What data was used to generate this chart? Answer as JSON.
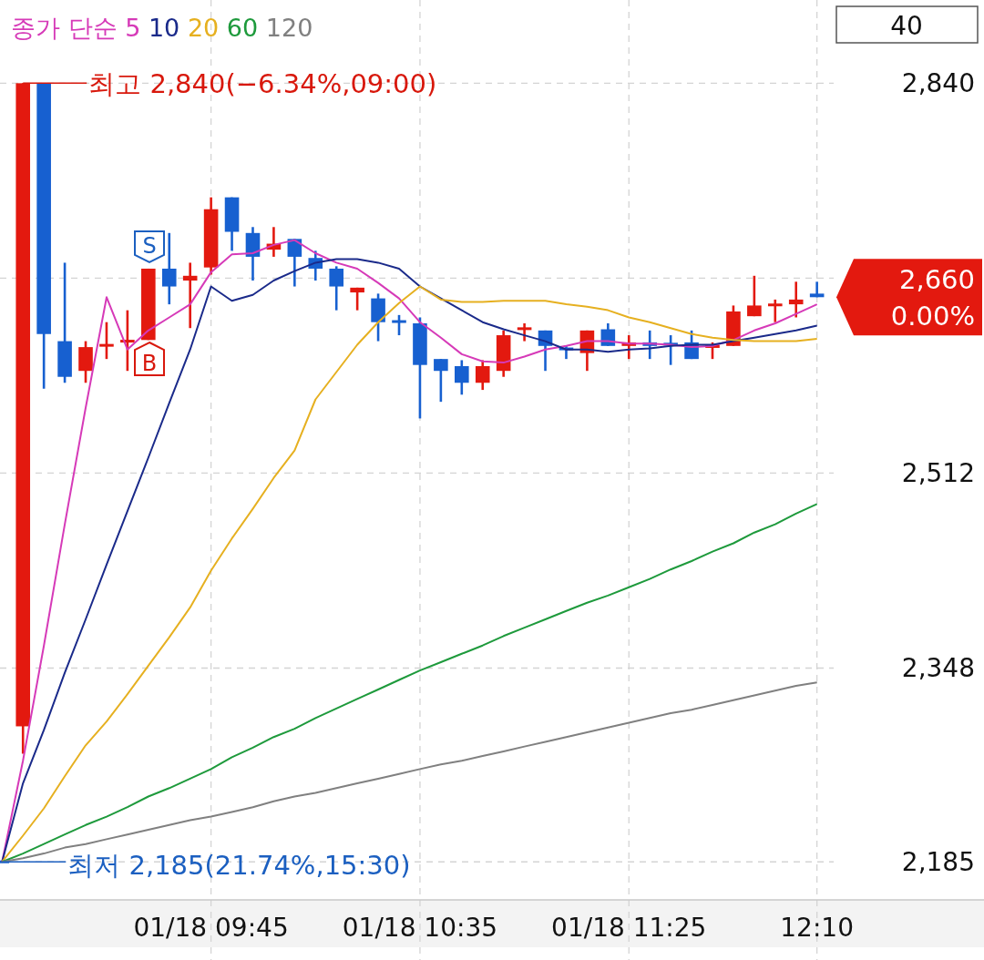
{
  "chart_data": {
    "type": "candlestick",
    "categories": [
      null,
      null,
      null,
      null,
      null,
      null,
      null,
      null,
      null,
      null,
      "01/18 09:45",
      null,
      null,
      null,
      null,
      null,
      null,
      null,
      null,
      null,
      "01/18 10:35",
      null,
      null,
      null,
      null,
      null,
      null,
      null,
      null,
      null,
      "01/18 11:25",
      null,
      null,
      null,
      null,
      null,
      null,
      null,
      null,
      "12:10"
    ],
    "ohlc": [
      [
        2185,
        2185,
        2185,
        2185
      ],
      [
        2299,
        2840,
        2276,
        2840
      ],
      [
        2840,
        2840,
        2583,
        2629
      ],
      [
        2623,
        2689,
        2588,
        2593
      ],
      [
        2598,
        2623,
        2588,
        2618
      ],
      [
        2619,
        2639,
        2608,
        2620
      ],
      [
        2623,
        2649,
        2598,
        2623
      ],
      [
        2624,
        2684,
        2624,
        2684
      ],
      [
        2684,
        2714,
        2654,
        2669
      ],
      [
        2674,
        2689,
        2634,
        2678
      ],
      [
        2685,
        2744,
        2679,
        2734
      ],
      [
        2744,
        2744,
        2699,
        2715
      ],
      [
        2714,
        2719,
        2674,
        2694
      ],
      [
        2700,
        2719,
        2694,
        2705
      ],
      [
        2709,
        2709,
        2669,
        2694
      ],
      [
        2693,
        2699,
        2674,
        2684
      ],
      [
        2684,
        2686,
        2649,
        2669
      ],
      [
        2664,
        2668,
        2649,
        2668
      ],
      [
        2659,
        2663,
        2623,
        2639
      ],
      [
        2640,
        2645,
        2628,
        2639
      ],
      [
        2638,
        2643,
        2558,
        2603
      ],
      [
        2608,
        2608,
        2572,
        2598
      ],
      [
        2602,
        2607,
        2578,
        2588
      ],
      [
        2588,
        2607,
        2582,
        2602
      ],
      [
        2598,
        2632,
        2593,
        2628
      ],
      [
        2633,
        2638,
        2623,
        2634
      ],
      [
        2632,
        2632,
        2598,
        2619
      ],
      [
        2617,
        2619,
        2608,
        2616
      ],
      [
        2613,
        2632,
        2598,
        2632
      ],
      [
        2633,
        2638,
        2619,
        2619
      ],
      [
        2619,
        2628,
        2608,
        2622
      ],
      [
        2622,
        2632,
        2608,
        2619
      ],
      [
        2621,
        2628,
        2603,
        2620
      ],
      [
        2622,
        2632,
        2608,
        2608
      ],
      [
        2618,
        2622,
        2608,
        2619
      ],
      [
        2619,
        2653,
        2619,
        2648
      ],
      [
        2644,
        2678,
        2644,
        2653
      ],
      [
        2653,
        2658,
        2639,
        2654
      ],
      [
        2654,
        2673,
        2643,
        2658
      ],
      [
        2663,
        2673,
        2660,
        2660
      ]
    ],
    "colors": [
      "#1760d0",
      "#e3190f",
      "#1760d0",
      "#1760d0",
      "#e3190f",
      "#e3190f",
      "#e3190f",
      "#e3190f",
      "#1760d0",
      "#e3190f",
      "#e3190f",
      "#1760d0",
      "#1760d0",
      "#e3190f",
      "#1760d0",
      "#1760d0",
      "#1760d0",
      "#e3190f",
      "#1760d0",
      "#1760d0",
      "#1760d0",
      "#1760d0",
      "#1760d0",
      "#e3190f",
      "#e3190f",
      "#e3190f",
      "#1760d0",
      "#1760d0",
      "#e3190f",
      "#1760d0",
      "#e3190f",
      "#1760d0",
      "#1760d0",
      "#1760d0",
      "#e3190f",
      "#e3190f",
      "#e3190f",
      "#e3190f",
      "#e3190f",
      "#1760d0"
    ],
    "legend_title": "종가 단순",
    "legend": "top left",
    "series": [
      {
        "name": "5",
        "type": "line",
        "color": "#d63ab8",
        "values": [
          2185,
          2270,
          2367,
          2469,
          2567,
          2660,
          2616,
          2632,
          2643,
          2654,
          2681,
          2696,
          2697,
          2704,
          2708,
          2697,
          2689,
          2684,
          2672,
          2659,
          2639,
          2626,
          2612,
          2606,
          2605,
          2610,
          2616,
          2619,
          2623,
          2623,
          2621,
          2621,
          2620,
          2618,
          2619,
          2624,
          2632,
          2638,
          2646,
          2654
        ]
      },
      {
        "name": "10",
        "type": "line",
        "color": "#1a2a8a",
        "values": [
          2185,
          2251,
          2296,
          2344,
          2389,
          2435,
          2480,
          2525,
          2571,
          2616,
          2669,
          2657,
          2662,
          2674,
          2682,
          2689,
          2692,
          2692,
          2689,
          2684,
          2669,
          2659,
          2649,
          2639,
          2633,
          2628,
          2623,
          2616,
          2616,
          2614,
          2616,
          2617,
          2619,
          2620,
          2620,
          2623,
          2626,
          2629,
          2632,
          2636
        ]
      },
      {
        "name": "20",
        "type": "line",
        "color": "#e6b020",
        "values": [
          2185,
          2207,
          2230,
          2257,
          2283,
          2303,
          2326,
          2350,
          2374,
          2399,
          2430,
          2457,
          2482,
          2508,
          2531,
          2574,
          2597,
          2620,
          2639,
          2655,
          2669,
          2658,
          2656,
          2656,
          2657,
          2657,
          2657,
          2654,
          2652,
          2649,
          2643,
          2639,
          2634,
          2629,
          2626,
          2624,
          2623,
          2623,
          2623,
          2625
        ]
      },
      {
        "name": "60",
        "type": "line",
        "color": "#1e9a3c",
        "values": [
          2185,
          2192,
          2200,
          2208,
          2216,
          2223,
          2231,
          2240,
          2247,
          2255,
          2263,
          2273,
          2281,
          2290,
          2297,
          2306,
          2314,
          2322,
          2330,
          2338,
          2346,
          2353,
          2360,
          2367,
          2375,
          2382,
          2389,
          2396,
          2403,
          2409,
          2416,
          2423,
          2431,
          2438,
          2446,
          2453,
          2462,
          2469,
          2478,
          2486
        ]
      },
      {
        "name": "120",
        "type": "line",
        "color": "#808080",
        "values": [
          2185,
          2188,
          2192,
          2197,
          2200,
          2204,
          2208,
          2212,
          2216,
          2220,
          2223,
          2227,
          2231,
          2236,
          2240,
          2243,
          2247,
          2251,
          2255,
          2259,
          2263,
          2267,
          2270,
          2274,
          2278,
          2282,
          2286,
          2290,
          2294,
          2298,
          2302,
          2306,
          2310,
          2313,
          2317,
          2321,
          2325,
          2329,
          2333,
          2336
        ]
      }
    ],
    "ylim": [
      2153,
      2910
    ],
    "yticks": [
      {
        "value": 2840,
        "label": "2,840"
      },
      {
        "value": 2676,
        "label": null
      },
      {
        "value": 2512,
        "label": "2,512"
      },
      {
        "value": 2348,
        "label": "2,348"
      },
      {
        "value": 2185,
        "label": "2,185"
      }
    ],
    "grid": true,
    "annotations": [
      "40",
      "최고 2,840(−6.34%,09:00)",
      "최저 2,185(21.74%,15:30)",
      "S",
      "B",
      "2,660",
      "0.00%"
    ]
  }
}
